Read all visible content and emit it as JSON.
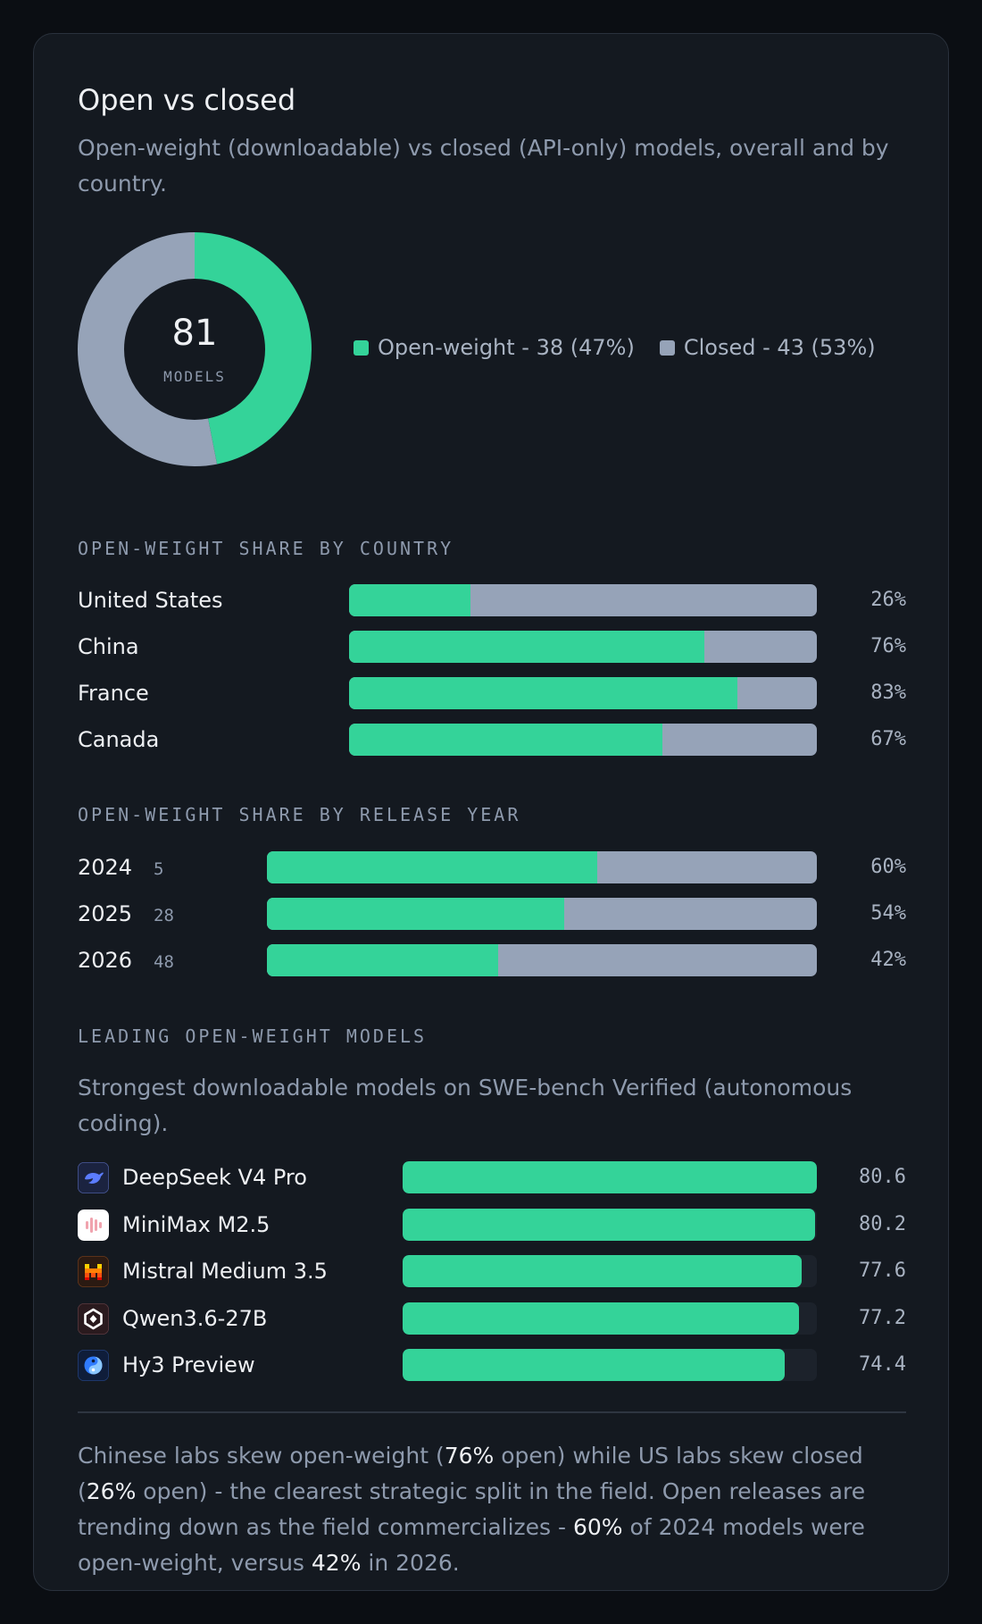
{
  "card": {
    "title": "Open vs closed",
    "subtitle": "Open-weight (downloadable) vs closed (API-only) models, overall and by country."
  },
  "colors": {
    "open": "#34d399",
    "closed": "#96a3b8",
    "track": "#1c222b",
    "inner": "#141920"
  },
  "donut": {
    "total": "81",
    "total_label": "MODELS",
    "legend": [
      {
        "label": "Open-weight - 38 (47%)",
        "color": "#34d399"
      },
      {
        "label": "Closed - 43 (53%)",
        "color": "#96a3b8"
      }
    ]
  },
  "by_country": {
    "heading": "OPEN-WEIGHT SHARE BY COUNTRY",
    "rows": [
      {
        "label": "United States",
        "value": "26%"
      },
      {
        "label": "China",
        "value": "76%"
      },
      {
        "label": "France",
        "value": "83%"
      },
      {
        "label": "Canada",
        "value": "67%"
      }
    ]
  },
  "by_year": {
    "heading": "OPEN-WEIGHT SHARE BY RELEASE YEAR",
    "rows": [
      {
        "label": "2024",
        "count": "5",
        "value": "60%"
      },
      {
        "label": "2025",
        "count": "28",
        "value": "54%"
      },
      {
        "label": "2026",
        "count": "48",
        "value": "42%"
      }
    ]
  },
  "leading": {
    "heading": "LEADING OPEN-WEIGHT MODELS",
    "subtitle": "Strongest downloadable models on SWE-bench Verified (autonomous coding).",
    "rows": [
      {
        "name": "DeepSeek V4 Pro",
        "value": "80.6",
        "icon": "deepseek-logo-icon"
      },
      {
        "name": "MiniMax M2.5",
        "value": "80.2",
        "icon": "minimax-logo-icon"
      },
      {
        "name": "Mistral Medium 3.5",
        "value": "77.6",
        "icon": "mistral-logo-icon"
      },
      {
        "name": "Qwen3.6-27B",
        "value": "77.2",
        "icon": "qwen-logo-icon"
      },
      {
        "name": "Hy3 Preview",
        "value": "74.4",
        "icon": "hunyuan-logo-icon"
      }
    ]
  },
  "summary": {
    "p1": "Chinese labs skew open-weight (",
    "h1": "76%",
    "p2": " open) while US labs skew closed (",
    "h2": "26%",
    "p3": " open) - the clearest strategic split in the field. Open releases are trending down as the field commercializes - ",
    "h3": "60%",
    "p4": " of 2024 models were open-weight, versus ",
    "h4": "42%",
    "p5": " in 2026."
  },
  "chart_data": [
    {
      "type": "pie",
      "categories": [
        "Open-weight",
        "Closed"
      ],
      "values": [
        38,
        43
      ],
      "percent": [
        47,
        53
      ]
    },
    {
      "type": "bar",
      "title": "OPEN-WEIGHT SHARE BY COUNTRY",
      "categories": [
        "United States",
        "China",
        "France",
        "Canada"
      ],
      "values": [
        26,
        76,
        83,
        67
      ],
      "ylim": [
        0,
        100
      ]
    },
    {
      "type": "bar",
      "title": "OPEN-WEIGHT SHARE BY RELEASE YEAR",
      "categories": [
        "2024",
        "2025",
        "2026"
      ],
      "counts": [
        5,
        28,
        48
      ],
      "values": [
        60,
        54,
        42
      ],
      "ylim": [
        0,
        100
      ]
    },
    {
      "type": "bar",
      "title": "LEADING OPEN-WEIGHT MODELS",
      "categories": [
        "DeepSeek V4 Pro",
        "MiniMax M2.5",
        "Mistral Medium 3.5",
        "Qwen3.6-27B",
        "Hy3 Preview"
      ],
      "values": [
        80.6,
        80.2,
        77.6,
        77.2,
        74.4
      ],
      "ylim": [
        0,
        80.6
      ]
    }
  ]
}
